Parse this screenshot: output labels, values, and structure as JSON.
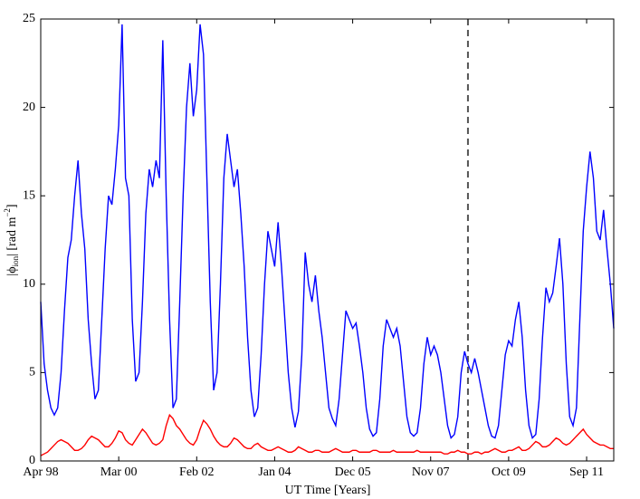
{
  "chart_data": {
    "type": "line",
    "xlabel": "UT Time [Years]",
    "ylabel": [
      "|ϕ",
      "ion",
      "| [rad m",
      "−2",
      "]"
    ],
    "x": [
      "Apr 98",
      "May 98",
      "Jun 98",
      "Jul 98",
      "Aug 98",
      "Sep 98",
      "Oct 98",
      "Nov 98",
      "Dec 98",
      "Jan 99",
      "Feb 99",
      "Mar 99",
      "Apr 99",
      "May 99",
      "Jun 99",
      "Jul 99",
      "Aug 99",
      "Sep 99",
      "Oct 99",
      "Nov 99",
      "Dec 99",
      "Jan 00",
      "Feb 00",
      "Mar 00",
      "Apr 00",
      "May 00",
      "Jun 00",
      "Jul 00",
      "Aug 00",
      "Sep 00",
      "Oct 00",
      "Nov 00",
      "Dec 00",
      "Jan 01",
      "Feb 01",
      "Mar 01",
      "Apr 01",
      "May 01",
      "Jun 01",
      "Jul 01",
      "Aug 01",
      "Sep 01",
      "Oct 01",
      "Nov 01",
      "Dec 01",
      "Jan 02",
      "Feb 02",
      "Mar 02",
      "Apr 02",
      "May 02",
      "Jun 02",
      "Jul 02",
      "Aug 02",
      "Sep 02",
      "Oct 02",
      "Nov 02",
      "Dec 02",
      "Jan 03",
      "Feb 03",
      "Mar 03",
      "Apr 03",
      "May 03",
      "Jun 03",
      "Jul 03",
      "Aug 03",
      "Sep 03",
      "Oct 03",
      "Nov 03",
      "Dec 03",
      "Jan 04",
      "Feb 04",
      "Mar 04",
      "Apr 04",
      "May 04",
      "Jun 04",
      "Jul 04",
      "Aug 04",
      "Sep 04",
      "Oct 04",
      "Nov 04",
      "Dec 04",
      "Jan 05",
      "Feb 05",
      "Mar 05",
      "Apr 05",
      "May 05",
      "Jun 05",
      "Jul 05",
      "Aug 05",
      "Sep 05",
      "Oct 05",
      "Nov 05",
      "Dec 05",
      "Jan 06",
      "Feb 06",
      "Mar 06",
      "Apr 06",
      "May 06",
      "Jun 06",
      "Jul 06",
      "Aug 06",
      "Sep 06",
      "Oct 06",
      "Nov 06",
      "Dec 06",
      "Jan 07",
      "Feb 07",
      "Mar 07",
      "Apr 07",
      "May 07",
      "Jun 07",
      "Jul 07",
      "Aug 07",
      "Sep 07",
      "Oct 07",
      "Nov 07",
      "Dec 07",
      "Jan 08",
      "Feb 08",
      "Mar 08",
      "Apr 08",
      "May 08",
      "Jun 08",
      "Jul 08",
      "Aug 08",
      "Sep 08",
      "Oct 08",
      "Nov 08",
      "Dec 08",
      "Jan 09",
      "Feb 09",
      "Mar 09",
      "Apr 09",
      "May 09",
      "Jun 09",
      "Jul 09",
      "Aug 09",
      "Sep 09",
      "Oct 09",
      "Nov 09",
      "Dec 09",
      "Jan 10",
      "Feb 10",
      "Mar 10",
      "Apr 10",
      "May 10",
      "Jun 10",
      "Jul 10",
      "Aug 10",
      "Sep 10",
      "Oct 10",
      "Nov 10",
      "Dec 10",
      "Jan 11",
      "Feb 11",
      "Mar 11",
      "Apr 11",
      "May 11",
      "Jun 11",
      "Jul 11",
      "Aug 11",
      "Sep 11",
      "Oct 11",
      "Nov 11",
      "Dec 11",
      "Jan 12",
      "Feb 12",
      "Mar 12",
      "Apr 12",
      "May 12"
    ],
    "series": [
      {
        "color": "#0000ff",
        "values": [
          9.0,
          5.5,
          4.0,
          3.0,
          2.6,
          3.0,
          5.0,
          8.5,
          11.5,
          12.5,
          15.0,
          17.0,
          14.0,
          12.0,
          8.0,
          5.5,
          3.5,
          4.0,
          8.0,
          12.0,
          15.0,
          14.5,
          16.5,
          19.0,
          24.7,
          16.0,
          15.0,
          8.0,
          4.5,
          5.0,
          9.0,
          14.0,
          16.5,
          15.5,
          17.0,
          16.0,
          23.8,
          15.0,
          8.0,
          3.0,
          3.5,
          9.0,
          15.0,
          20.0,
          22.5,
          19.5,
          21.0,
          24.7,
          23.0,
          16.0,
          9.0,
          4.0,
          5.0,
          10.0,
          16.0,
          18.5,
          17.0,
          15.5,
          16.5,
          14.0,
          11.0,
          7.0,
          4.0,
          2.5,
          3.0,
          6.0,
          10.0,
          13.0,
          12.0,
          11.0,
          13.5,
          11.0,
          8.0,
          5.0,
          3.0,
          1.9,
          2.8,
          6.0,
          11.8,
          10.0,
          9.0,
          10.5,
          8.5,
          7.0,
          5.0,
          3.0,
          2.4,
          2.0,
          3.5,
          6.0,
          8.5,
          8.0,
          7.5,
          7.8,
          6.5,
          5.0,
          3.0,
          1.8,
          1.4,
          1.6,
          3.5,
          6.5,
          8.0,
          7.5,
          7.0,
          7.5,
          6.5,
          4.5,
          2.5,
          1.6,
          1.4,
          1.6,
          3.0,
          5.5,
          7.0,
          6.0,
          6.5,
          6.0,
          5.0,
          3.5,
          2.0,
          1.3,
          1.5,
          2.5,
          5.0,
          6.2,
          5.5,
          5.0,
          5.8,
          5.0,
          4.0,
          3.0,
          2.0,
          1.4,
          1.3,
          2.0,
          4.0,
          6.0,
          6.8,
          6.5,
          8.0,
          9.0,
          7.0,
          4.0,
          2.0,
          1.3,
          1.5,
          3.5,
          7.0,
          9.8,
          9.0,
          9.5,
          11.0,
          12.6,
          10.0,
          5.5,
          2.5,
          2.0,
          3.0,
          8.0,
          13.0,
          15.5,
          17.5,
          16.0,
          13.0,
          12.5,
          14.2,
          12.0,
          10.0,
          7.5
        ]
      },
      {
        "color": "#ff0000",
        "values": [
          0.3,
          0.4,
          0.5,
          0.7,
          0.9,
          1.1,
          1.2,
          1.1,
          1.0,
          0.8,
          0.6,
          0.6,
          0.7,
          0.9,
          1.2,
          1.4,
          1.3,
          1.2,
          1.0,
          0.8,
          0.8,
          1.0,
          1.3,
          1.7,
          1.6,
          1.2,
          1.0,
          0.9,
          1.2,
          1.5,
          1.8,
          1.6,
          1.3,
          1.0,
          0.9,
          1.0,
          1.2,
          2.0,
          2.6,
          2.4,
          2.0,
          1.8,
          1.5,
          1.2,
          1.0,
          0.9,
          1.2,
          1.8,
          2.3,
          2.1,
          1.8,
          1.4,
          1.1,
          0.9,
          0.8,
          0.8,
          1.0,
          1.3,
          1.2,
          1.0,
          0.8,
          0.7,
          0.7,
          0.9,
          1.0,
          0.8,
          0.7,
          0.6,
          0.6,
          0.7,
          0.8,
          0.7,
          0.6,
          0.5,
          0.5,
          0.6,
          0.8,
          0.7,
          0.6,
          0.5,
          0.5,
          0.6,
          0.6,
          0.5,
          0.5,
          0.5,
          0.6,
          0.7,
          0.6,
          0.5,
          0.5,
          0.5,
          0.6,
          0.6,
          0.5,
          0.5,
          0.5,
          0.5,
          0.6,
          0.6,
          0.5,
          0.5,
          0.5,
          0.5,
          0.6,
          0.5,
          0.5,
          0.5,
          0.5,
          0.5,
          0.5,
          0.6,
          0.5,
          0.5,
          0.5,
          0.5,
          0.5,
          0.5,
          0.5,
          0.4,
          0.4,
          0.5,
          0.5,
          0.6,
          0.5,
          0.5,
          0.4,
          0.4,
          0.5,
          0.5,
          0.4,
          0.5,
          0.5,
          0.6,
          0.7,
          0.6,
          0.5,
          0.5,
          0.6,
          0.6,
          0.7,
          0.8,
          0.6,
          0.6,
          0.7,
          0.9,
          1.1,
          1.0,
          0.8,
          0.8,
          0.9,
          1.1,
          1.3,
          1.2,
          1.0,
          0.9,
          1.0,
          1.2,
          1.4,
          1.6,
          1.8,
          1.5,
          1.3,
          1.1,
          1.0,
          0.9,
          0.9,
          0.8,
          0.7,
          0.7
        ]
      }
    ],
    "xlim": [
      "Apr 98",
      "May 12"
    ],
    "xticks": [
      "Apr 98",
      "Mar 00",
      "Feb 02",
      "Jan 04",
      "Dec 05",
      "Nov 07",
      "Oct 09",
      "Sep 11"
    ],
    "vline": "Oct 08",
    "ylim": [
      0,
      25
    ],
    "yticks": [
      0,
      5,
      10,
      15,
      20,
      25
    ]
  }
}
